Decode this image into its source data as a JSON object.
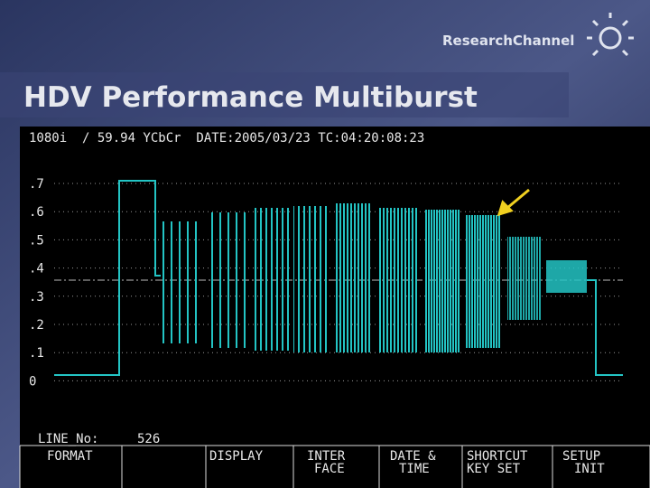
{
  "header": {
    "logo": "ResearchChannel",
    "title": "HDV Performance Multiburst"
  },
  "monitor": {
    "status": "1080i  / 59.94 YCbCr  DATE:2005/03/23 TC:04:20:08:23",
    "scale": [
      ".7",
      ".6",
      ".5",
      ".4",
      ".3",
      ".2",
      ".1",
      "0"
    ],
    "line_label": "LINE_No:",
    "line_number": "526",
    "menu": [
      [
        "FORMAT"
      ],
      [
        "DISPLAY"
      ],
      [
        "INTER",
        "FACE"
      ],
      [
        "DATE &",
        "TIME"
      ],
      [
        "SHORTCUT",
        "KEY SET"
      ],
      [
        "SETUP",
        "INIT"
      ]
    ]
  }
}
